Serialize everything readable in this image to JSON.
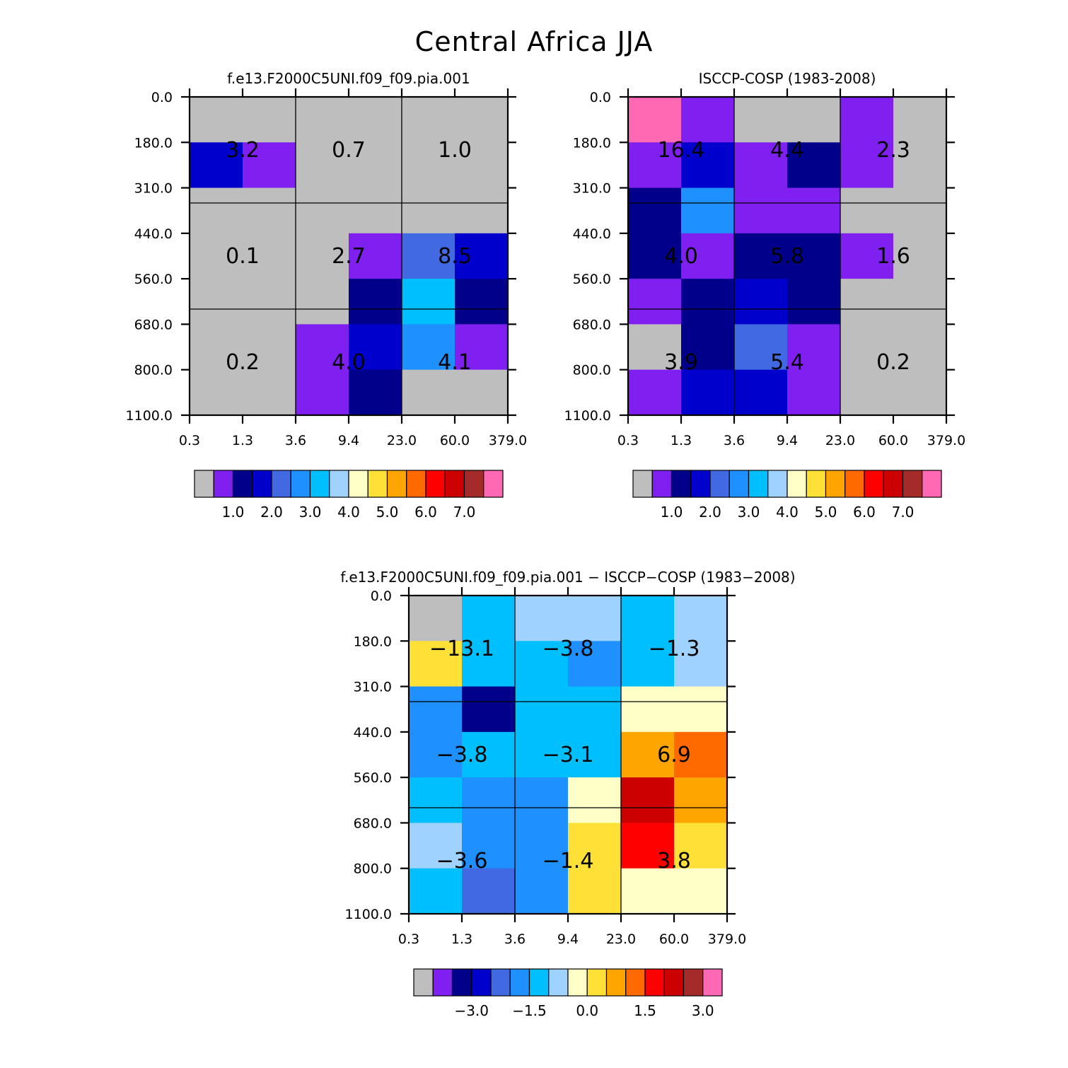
{
  "title": "Central Africa JJA",
  "palette": [
    "#bebebe",
    "#8020f0",
    "#00008b",
    "#0000cd",
    "#4169e1",
    "#1e90ff",
    "#00bfff",
    "#a0d2ff",
    "#ffffc8",
    "#ffe036",
    "#ffa500",
    "#ff6a00",
    "#ff0000",
    "#cd0000",
    "#a52a2a",
    "#ff69b4"
  ],
  "chart_data": [
    {
      "type": "heatmap",
      "title": "f.e13.F2000C5UNI.f09_f09.pia.001",
      "xlabel": "",
      "ylabel": "",
      "x_tick_labels": [
        "0.3",
        "1.3",
        "3.6",
        "9.4",
        "23.0",
        "60.0",
        "379.0"
      ],
      "y_tick_labels": [
        "0.0",
        "180.0",
        "310.0",
        "440.0",
        "560.0",
        "680.0",
        "800.0",
        "1100.0"
      ],
      "cell_colors": [
        [
          "#bebebe",
          "#bebebe",
          "#bebebe",
          "#bebebe",
          "#bebebe",
          "#bebebe"
        ],
        [
          "#0000cd",
          "#8020f0",
          "#bebebe",
          "#bebebe",
          "#bebebe",
          "#bebebe"
        ],
        [
          "#bebebe",
          "#bebebe",
          "#bebebe",
          "#bebebe",
          "#bebebe",
          "#bebebe"
        ],
        [
          "#bebebe",
          "#bebebe",
          "#bebebe",
          "#8020f0",
          "#4169e1",
          "#0000cd"
        ],
        [
          "#bebebe",
          "#bebebe",
          "#bebebe",
          "#00008b",
          "#00bfff",
          "#00008b"
        ],
        [
          "#bebebe",
          "#bebebe",
          "#8020f0",
          "#0000cd",
          "#1e90ff",
          "#8020f0"
        ],
        [
          "#bebebe",
          "#bebebe",
          "#8020f0",
          "#00008b",
          "#bebebe",
          "#bebebe"
        ]
      ],
      "box_totals": [
        [
          "3.2",
          "0.7",
          "1.0"
        ],
        [
          "0.1",
          "2.7",
          "8.5"
        ],
        [
          "0.2",
          "4.0",
          "4.1"
        ]
      ],
      "colorbar": {
        "labels": [
          "1.0",
          "2.0",
          "3.0",
          "4.0",
          "5.0",
          "6.0",
          "7.0"
        ]
      }
    },
    {
      "type": "heatmap",
      "title": "ISCCP-COSP (1983-2008)",
      "xlabel": "",
      "ylabel": "",
      "x_tick_labels": [
        "0.3",
        "1.3",
        "3.6",
        "9.4",
        "23.0",
        "60.0",
        "379.0"
      ],
      "y_tick_labels": [
        "0.0",
        "180.0",
        "310.0",
        "440.0",
        "560.0",
        "680.0",
        "800.0",
        "1100.0"
      ],
      "cell_colors": [
        [
          "#ff69b4",
          "#8020f0",
          "#bebebe",
          "#bebebe",
          "#8020f0",
          "#bebebe"
        ],
        [
          "#8020f0",
          "#0000cd",
          "#8020f0",
          "#00008b",
          "#8020f0",
          "#bebebe"
        ],
        [
          "#00008b",
          "#1e90ff",
          "#8020f0",
          "#8020f0",
          "#bebebe",
          "#bebebe"
        ],
        [
          "#00008b",
          "#8020f0",
          "#00008b",
          "#00008b",
          "#8020f0",
          "#bebebe"
        ],
        [
          "#8020f0",
          "#00008b",
          "#0000cd",
          "#00008b",
          "#bebebe",
          "#bebebe"
        ],
        [
          "#bebebe",
          "#00008b",
          "#4169e1",
          "#8020f0",
          "#bebebe",
          "#bebebe"
        ],
        [
          "#8020f0",
          "#0000cd",
          "#0000cd",
          "#8020f0",
          "#bebebe",
          "#bebebe"
        ]
      ],
      "box_totals": [
        [
          "16.4",
          "4.4",
          "2.3"
        ],
        [
          "4.0",
          "5.8",
          "1.6"
        ],
        [
          "3.9",
          "5.4",
          "0.2"
        ]
      ],
      "colorbar": {
        "labels": [
          "1.0",
          "2.0",
          "3.0",
          "4.0",
          "5.0",
          "6.0",
          "7.0"
        ]
      }
    },
    {
      "type": "heatmap",
      "title": "f.e13.F2000C5UNI.f09_f09.pia.001 − ISCCP−COSP (1983−2008)",
      "xlabel": "",
      "ylabel": "",
      "x_tick_labels": [
        "0.3",
        "1.3",
        "3.6",
        "9.4",
        "23.0",
        "60.0",
        "379.0"
      ],
      "y_tick_labels": [
        "0.0",
        "180.0",
        "310.0",
        "440.0",
        "560.0",
        "680.0",
        "800.0",
        "1100.0"
      ],
      "cell_colors": [
        [
          "#bebebe",
          "#00bfff",
          "#a0d2ff",
          "#a0d2ff",
          "#00bfff",
          "#a0d2ff"
        ],
        [
          "#ffe036",
          "#00bfff",
          "#00bfff",
          "#1e90ff",
          "#00bfff",
          "#a0d2ff"
        ],
        [
          "#1e90ff",
          "#00008b",
          "#00bfff",
          "#00bfff",
          "#ffffc8",
          "#ffffc8"
        ],
        [
          "#1e90ff",
          "#00bfff",
          "#00bfff",
          "#00bfff",
          "#ffa500",
          "#ff6a00"
        ],
        [
          "#00bfff",
          "#1e90ff",
          "#1e90ff",
          "#ffffc8",
          "#cd0000",
          "#ffa500"
        ],
        [
          "#a0d2ff",
          "#1e90ff",
          "#1e90ff",
          "#ffe036",
          "#ff0000",
          "#ffe036"
        ],
        [
          "#00bfff",
          "#4169e1",
          "#1e90ff",
          "#ffe036",
          "#ffffc8",
          "#ffffc8"
        ]
      ],
      "box_totals": [
        [
          "−13.1",
          "−3.8",
          "−1.3"
        ],
        [
          "−3.8",
          "−3.1",
          "6.9"
        ],
        [
          "−3.6",
          "−1.4",
          "3.8"
        ]
      ],
      "colorbar": {
        "labels": [
          "−3.0",
          "−1.5",
          "0.0",
          "1.5",
          "3.0"
        ]
      }
    }
  ]
}
